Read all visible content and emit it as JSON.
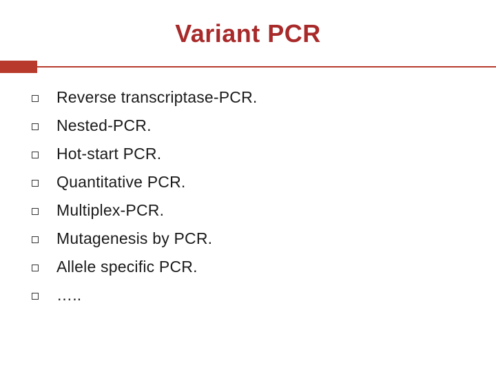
{
  "title": "Variant PCR",
  "title_color": "#a82a2a",
  "title_fontsize": 36,
  "accent_color": "#b73a2c",
  "accent_thin_color": "#b73a2c",
  "bar_thick_width": 54,
  "text_color": "#1a1a1a",
  "item_fontsize": 23,
  "background_color": "#ffffff",
  "bullet_border_color": "#333333",
  "items": [
    "Reverse transcriptase-PCR.",
    "Nested-PCR.",
    "Hot-start PCR.",
    "Quantitative PCR.",
    "Multiplex-PCR.",
    "Mutagenesis by PCR.",
    "Allele specific PCR.",
    "….."
  ]
}
